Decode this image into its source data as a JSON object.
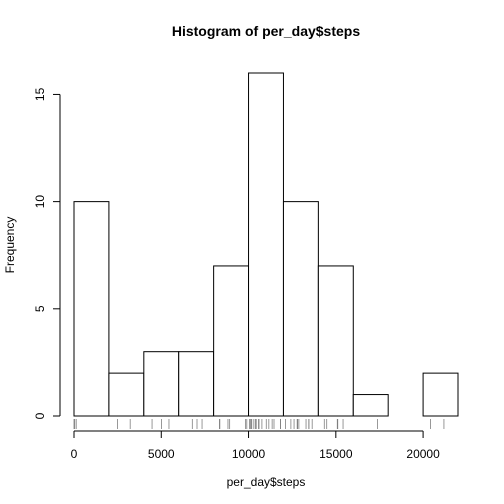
{
  "chart_data": {
    "type": "bar",
    "title": "Histogram of per_day$steps",
    "xlabel": "per_day$steps",
    "ylabel": "Frequency",
    "xlim": [
      0,
      22000
    ],
    "ylim": [
      0,
      16
    ],
    "x_ticks": [
      "0",
      "5000",
      "10000",
      "15000",
      "20000"
    ],
    "y_ticks": [
      "0",
      "5",
      "10",
      "15"
    ],
    "bins": [
      {
        "start": 0,
        "end": 2000,
        "count": 10
      },
      {
        "start": 2000,
        "end": 4000,
        "count": 2
      },
      {
        "start": 4000,
        "end": 6000,
        "count": 3
      },
      {
        "start": 6000,
        "end": 8000,
        "count": 3
      },
      {
        "start": 8000,
        "end": 10000,
        "count": 7
      },
      {
        "start": 10000,
        "end": 12000,
        "count": 16
      },
      {
        "start": 12000,
        "end": 14000,
        "count": 10
      },
      {
        "start": 14000,
        "end": 16000,
        "count": 7
      },
      {
        "start": 16000,
        "end": 18000,
        "count": 1
      },
      {
        "start": 18000,
        "end": 20000,
        "count": 0
      },
      {
        "start": 20000,
        "end": 22000,
        "count": 2
      }
    ],
    "rug": [
      0,
      41,
      126,
      2492,
      3219,
      4472,
      5018,
      5441,
      6778,
      7047,
      7336,
      8334,
      8355,
      8821,
      8918,
      9819,
      9900,
      10056,
      10119,
      10139,
      10183,
      10304,
      10395,
      10439,
      10571,
      10600,
      10765,
      11015,
      11162,
      11352,
      11458,
      11829,
      11834,
      12116,
      12426,
      12608,
      12787,
      12811,
      12883,
      13294,
      13452,
      13460,
      13646,
      14339,
      14478,
      15084,
      15098,
      15110,
      15414,
      17382,
      20427,
      21194
    ],
    "grid": false,
    "legend": "none"
  }
}
